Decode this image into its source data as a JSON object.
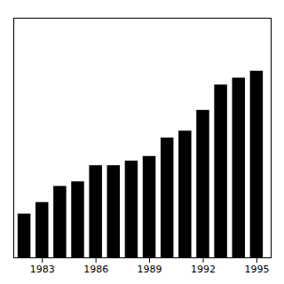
{
  "chart_data": {
    "type": "bar",
    "x": [
      1982,
      1983,
      1984,
      1985,
      1986,
      1987,
      1988,
      1989,
      1990,
      1991,
      1992,
      1993,
      1994,
      1995
    ],
    "values": [
      0.95,
      1.2,
      1.55,
      1.65,
      2.0,
      2.0,
      2.1,
      2.2,
      2.6,
      2.75,
      3.2,
      3.75,
      3.9,
      4.05
    ],
    "color": "#000000",
    "xlim": [
      1981.4,
      1995.8
    ],
    "xticks": [
      1983,
      1986,
      1989,
      1992,
      1995
    ],
    "ylim": [
      0,
      5.2
    ],
    "tick_labels": "x",
    "grid": false
  }
}
